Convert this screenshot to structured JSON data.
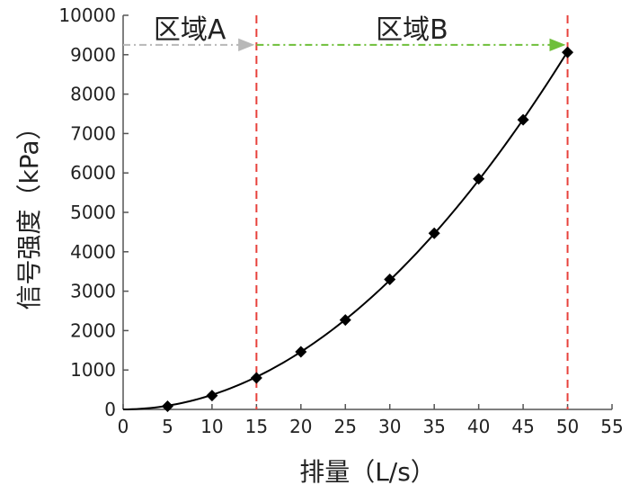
{
  "chart_data": {
    "type": "scatter",
    "title": "",
    "xlabel": "排量（L/s）",
    "ylabel": "信号强度（kPa）",
    "xlim": [
      0,
      55
    ],
    "ylim": [
      0,
      10000
    ],
    "x_ticks": [
      "0",
      "5",
      "10",
      "15",
      "20",
      "25",
      "30",
      "35",
      "40",
      "45",
      "50",
      "55"
    ],
    "y_ticks": [
      "0",
      "1000",
      "2000",
      "3000",
      "4000",
      "5000",
      "6000",
      "7000",
      "8000",
      "9000",
      "10000"
    ],
    "grid": false,
    "series": [
      {
        "x": [
          5,
          10,
          15,
          20,
          25,
          30,
          35,
          40,
          45,
          50
        ],
        "y": [
          80,
          350,
          800,
          1460,
          2270,
          3300,
          4470,
          5850,
          7350,
          9060
        ],
        "marker": "diamond",
        "line": "smooth fit",
        "color": "#000000"
      }
    ],
    "annotations": {
      "vertical_lines": [
        {
          "x": 15,
          "color": "#e8413c",
          "style": "dashed"
        },
        {
          "x": 50,
          "color": "#e8413c",
          "style": "dashed"
        }
      ],
      "regions": [
        {
          "label": "区域A",
          "from": 0,
          "to": 15,
          "arrow_y": 9250,
          "arrow_color": "#b8b8b8"
        },
        {
          "label": "区域B",
          "from": 15,
          "to": 50,
          "arrow_y": 9250,
          "arrow_color": "#6fbf3a"
        }
      ]
    }
  }
}
